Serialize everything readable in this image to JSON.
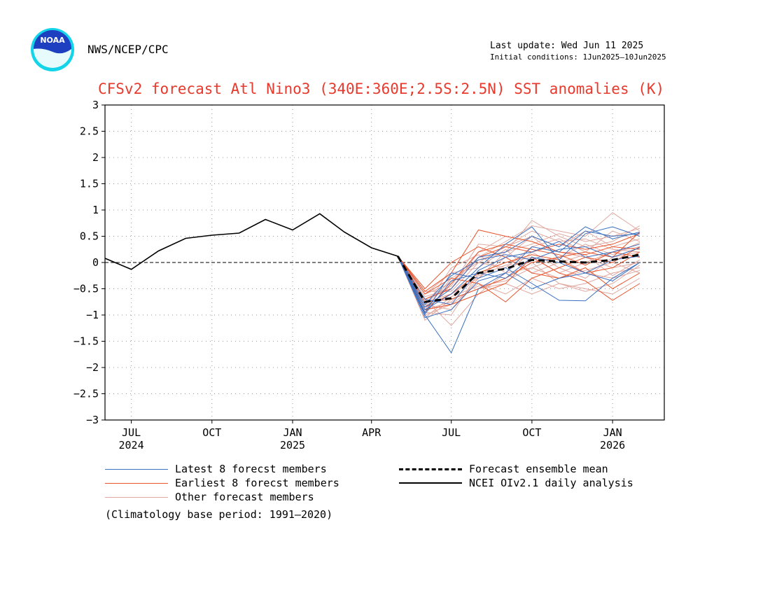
{
  "header": {
    "org": "NWS/NCEP/CPC",
    "last_update": "Last update: Wed Jun 11 2025",
    "initial_conditions": "Initial conditions: 1Jun2025—10Jun2025",
    "logo_text": "NOAA"
  },
  "footer": {
    "climatology": "(Climatology base period: 1991—2020)"
  },
  "legend": [
    {
      "label": "Latest 8 forecst members",
      "color": "#3a6fbf",
      "style": "solid-thin"
    },
    {
      "label": "Earliest 8 forecst members",
      "color": "#e8542b",
      "style": "solid-thin"
    },
    {
      "label": "Other forecast members",
      "color": "#e0a8a0",
      "style": "solid-thin"
    },
    {
      "label": "Forecast ensemble mean",
      "color": "#000000",
      "style": "dashed"
    },
    {
      "label": "NCEI OIv2.1 daily analysis",
      "color": "#000000",
      "style": "solid"
    }
  ],
  "chart_data": {
    "type": "line",
    "title": "CFSv2 forecast Atl Nino3 (340E:360E;2.5S:2.5N) SST anomalies (K)",
    "ylim": [
      -3,
      3
    ],
    "yticks": [
      -3,
      -2.5,
      -2,
      -1.5,
      -1,
      -0.5,
      0,
      0.5,
      1,
      1.5,
      2,
      2.5,
      3
    ],
    "ytick_labels": [
      "−3",
      "−2.5",
      "−2",
      "−1.5",
      "−1",
      "−0.5",
      "0",
      "0.5",
      "1",
      "1.5",
      "2",
      "2.5",
      "3"
    ],
    "xlim": [
      "2024-06-01",
      "2026-03-01"
    ],
    "xticks": [
      {
        "date": "2024-07-01",
        "label": "JUL",
        "year": "2024"
      },
      {
        "date": "2024-10-01",
        "label": "OCT",
        "year": ""
      },
      {
        "date": "2025-01-01",
        "label": "JAN",
        "year": "2025"
      },
      {
        "date": "2025-04-01",
        "label": "APR",
        "year": ""
      },
      {
        "date": "2025-07-01",
        "label": "JUL",
        "year": ""
      },
      {
        "date": "2025-10-01",
        "label": "OCT",
        "year": ""
      },
      {
        "date": "2026-01-01",
        "label": "JAN",
        "year": "2026"
      }
    ],
    "grid": true,
    "zero_line": true,
    "colors": {
      "latest": "#3a6fbf",
      "earliest": "#e8542b",
      "other": "#e0a8a0",
      "observed": "#000000",
      "mean": "#000000",
      "title": "#e8392d"
    },
    "observed": {
      "name": "NCEI OIv2.1 daily analysis",
      "x": [
        "2024-06-01",
        "2024-07-01",
        "2024-08-01",
        "2024-09-01",
        "2024-10-01",
        "2024-11-01",
        "2024-12-01",
        "2025-01-01",
        "2025-02-01",
        "2025-03-01",
        "2025-04-01",
        "2025-05-01"
      ],
      "y": [
        0.08,
        -0.13,
        0.22,
        0.46,
        0.52,
        0.56,
        0.82,
        0.62,
        0.93,
        0.58,
        0.28,
        0.12
      ]
    },
    "forecast_x": [
      "2025-05-01",
      "2025-06-01",
      "2025-07-01",
      "2025-08-01",
      "2025-09-01",
      "2025-10-01",
      "2025-11-01",
      "2025-12-01",
      "2026-01-01",
      "2026-02-01"
    ],
    "ensemble_mean": {
      "name": "Forecast ensemble mean",
      "y": [
        0.12,
        -0.75,
        -0.68,
        -0.2,
        -0.12,
        0.05,
        0.02,
        0.0,
        0.05,
        0.15
      ]
    },
    "members_latest": [
      [
        0.12,
        -1.0,
        -1.72,
        -0.5,
        -0.2,
        0.3,
        0.2,
        0.6,
        0.5,
        0.55
      ],
      [
        0.12,
        -0.95,
        -0.2,
        -0.3,
        -0.1,
        -0.4,
        -0.72,
        -0.73,
        -0.3,
        0.0
      ],
      [
        0.12,
        -0.85,
        -0.5,
        0.1,
        0.2,
        0.5,
        0.3,
        0.68,
        0.45,
        0.58
      ],
      [
        0.12,
        -1.05,
        -0.9,
        -0.35,
        -0.2,
        -0.5,
        -0.3,
        -0.2,
        -0.35,
        0.0
      ],
      [
        0.12,
        -0.8,
        -0.25,
        0.05,
        0.15,
        0.05,
        0.25,
        0.3,
        0.1,
        0.28
      ],
      [
        0.12,
        -0.9,
        -0.6,
        -0.1,
        0.35,
        0.68,
        0.05,
        0.55,
        0.68,
        0.5
      ],
      [
        0.12,
        -0.98,
        -0.35,
        -0.2,
        -0.3,
        0.1,
        0.0,
        -0.2,
        0.05,
        0.12
      ],
      [
        0.12,
        -0.7,
        -0.8,
        -0.15,
        0.1,
        0.2,
        0.4,
        0.1,
        0.2,
        0.35
      ]
    ],
    "members_earliest": [
      [
        0.12,
        -0.55,
        -0.2,
        0.62,
        0.5,
        0.4,
        0.2,
        0.15,
        0.3,
        0.25
      ],
      [
        0.12,
        -0.9,
        -0.8,
        -0.6,
        -0.4,
        0.1,
        -0.2,
        -0.35,
        -0.72,
        -0.4
      ],
      [
        0.12,
        -0.7,
        -0.5,
        0.1,
        0.3,
        0.2,
        0.35,
        0.25,
        0.35,
        0.55
      ],
      [
        0.12,
        -0.6,
        -0.3,
        -0.4,
        -0.75,
        -0.3,
        -0.1,
        0.1,
        0.0,
        0.3
      ],
      [
        0.12,
        -0.85,
        -0.6,
        -0.2,
        0.0,
        0.15,
        0.05,
        -0.2,
        -0.1,
        0.2
      ],
      [
        0.12,
        -0.5,
        0.0,
        0.3,
        0.1,
        -0.2,
        -0.3,
        -0.1,
        -0.5,
        -0.2
      ],
      [
        0.12,
        -0.75,
        -0.7,
        -0.5,
        -0.3,
        0.0,
        0.1,
        0.2,
        0.1,
        0.58
      ],
      [
        0.12,
        -0.95,
        -0.4,
        0.2,
        0.35,
        0.25,
        0.15,
        -0.05,
        0.2,
        0.1
      ]
    ],
    "members_other": [
      [
        0.12,
        -0.6,
        -0.4,
        0.1,
        0.4,
        0.7,
        0.6,
        0.5,
        0.95,
        0.6
      ],
      [
        0.12,
        -0.8,
        -0.9,
        -0.3,
        0.2,
        0.8,
        0.5,
        0.3,
        0.4,
        0.7
      ],
      [
        0.12,
        -1.1,
        -0.7,
        -0.5,
        -0.4,
        -0.6,
        -0.4,
        -0.5,
        -0.6,
        -0.3
      ],
      [
        0.12,
        -0.7,
        -1.2,
        -0.6,
        -0.2,
        0.2,
        -0.1,
        -0.3,
        0.1,
        0.2
      ],
      [
        0.12,
        -0.9,
        -0.3,
        0.0,
        -0.1,
        0.3,
        0.45,
        0.2,
        0.6,
        0.4
      ],
      [
        0.12,
        -0.65,
        -0.5,
        0.2,
        0.5,
        0.4,
        0.2,
        0.1,
        -0.1,
        0.0
      ],
      [
        0.12,
        -1.0,
        -0.8,
        -0.4,
        -0.6,
        -0.3,
        -0.5,
        -0.4,
        -0.2,
        -0.1
      ],
      [
        0.12,
        -0.75,
        -0.6,
        -0.3,
        0.1,
        0.5,
        0.3,
        0.6,
        0.3,
        0.45
      ],
      [
        0.12,
        -0.85,
        -0.1,
        0.15,
        -0.2,
        -0.1,
        0.1,
        -0.2,
        -0.3,
        -0.15
      ],
      [
        0.12,
        -0.95,
        -1.0,
        -0.2,
        0.0,
        0.1,
        -0.2,
        0.0,
        0.2,
        0.3
      ],
      [
        0.12,
        -0.7,
        -0.45,
        0.35,
        0.3,
        0.6,
        0.4,
        0.45,
        0.25,
        0.2
      ],
      [
        0.12,
        -0.6,
        -0.2,
        -0.1,
        0.25,
        -0.2,
        0.0,
        0.15,
        -0.25,
        0.05
      ],
      [
        0.12,
        -1.05,
        -0.65,
        -0.45,
        -0.35,
        -0.1,
        -0.3,
        -0.15,
        0.0,
        -0.2
      ],
      [
        0.12,
        -0.8,
        -0.35,
        0.05,
        0.2,
        0.35,
        0.55,
        0.4,
        0.5,
        0.65
      ],
      [
        0.12,
        -0.9,
        -0.75,
        -0.25,
        -0.05,
        0.0,
        -0.4,
        -0.55,
        -0.4,
        -0.05
      ],
      [
        0.12,
        -0.55,
        -0.55,
        0.0,
        0.3,
        0.5,
        0.1,
        0.35,
        0.15,
        0.38
      ]
    ]
  }
}
